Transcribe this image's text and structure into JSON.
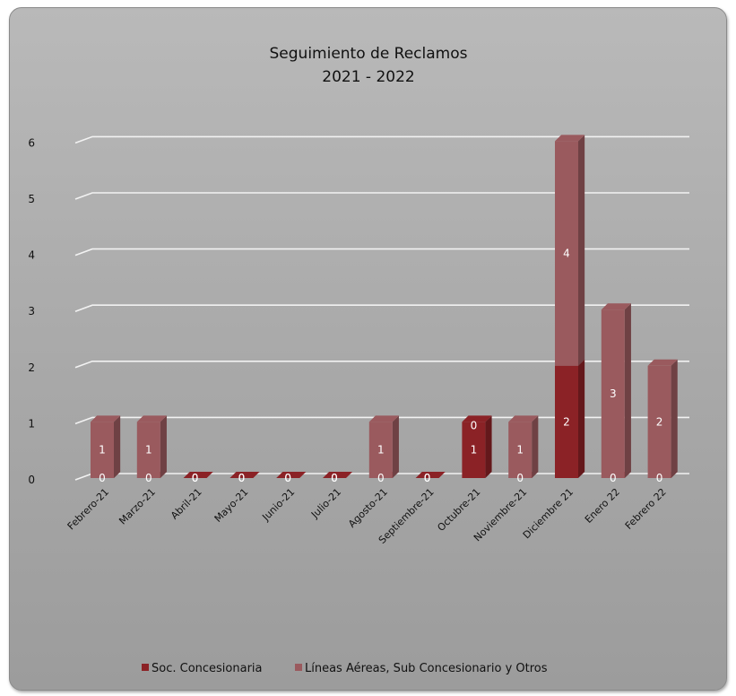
{
  "chart_data": {
    "type": "bar",
    "stacked": true,
    "title": [
      "Seguimiento de Reclamos",
      "2021 - 2022"
    ],
    "categories": [
      "Febrero-21",
      "Marzo-21",
      "Abril-21",
      "Mayo-21",
      "Junio-21",
      "Julio-21",
      "Agosto-21",
      "Septiembre-21",
      "Octubre-21",
      "Noviembre-21",
      "Diciembre 21",
      "Enero 22",
      "Febrero 22"
    ],
    "series": [
      {
        "name": "Soc. Concesionaria",
        "values": [
          0,
          0,
          0,
          0,
          0,
          0,
          0,
          0,
          1,
          0,
          2,
          0,
          0
        ],
        "color": "#8b2226"
      },
      {
        "name": "Líneas Aéreas, Sub Concesionario y Otros",
        "values": [
          1,
          1,
          0,
          0,
          0,
          0,
          1,
          0,
          0,
          1,
          4,
          3,
          2
        ],
        "color": "#9a5a5e"
      }
    ],
    "ylim": [
      0,
      6
    ],
    "yticks": [
      0,
      1,
      2,
      3,
      4,
      5,
      6
    ],
    "grid": true,
    "legend": "bottom",
    "data_labels": true
  }
}
